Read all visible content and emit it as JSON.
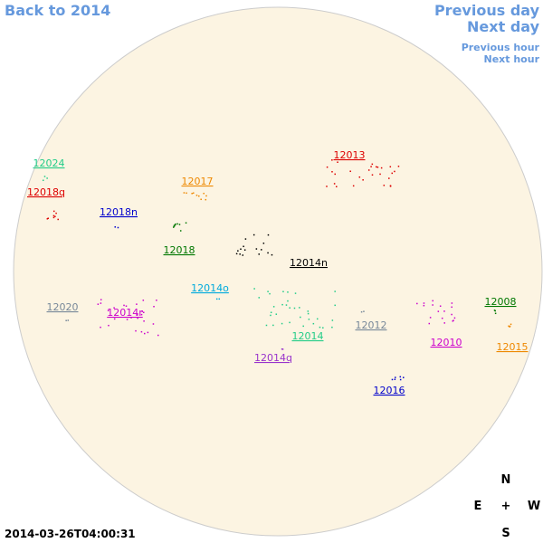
{
  "nav": {
    "back": "Back to 2014",
    "previous_day": "Previous day",
    "next_day": "Next day",
    "previous_hour": "Previous hour",
    "next_hour": "Next hour"
  },
  "timestamp": "2014-03-26T04:00:31",
  "compass": {
    "north": "N",
    "east": "E",
    "center": "+",
    "west": "W",
    "south": "S"
  },
  "regions": [
    {
      "label": "12024",
      "color": "#22cc88"
    },
    {
      "label": "12018q",
      "color": "#dd0000"
    },
    {
      "label": "12018n",
      "color": "#0000cc"
    },
    {
      "label": "12017",
      "color": "#ee8800"
    },
    {
      "label": "12018",
      "color": "#007700"
    },
    {
      "label": "12013",
      "color": "#dd0000"
    },
    {
      "label": "12014n",
      "color": "#000000"
    },
    {
      "label": "12014o",
      "color": "#00aadd"
    },
    {
      "label": "12020",
      "color": "#778899"
    },
    {
      "label": "12014r",
      "color": "#cc00cc"
    },
    {
      "label": "12014",
      "color": "#22cc88"
    },
    {
      "label": "12014q",
      "color": "#9933cc"
    },
    {
      "label": "12012",
      "color": "#778899"
    },
    {
      "label": "12010",
      "color": "#cc00cc"
    },
    {
      "label": "12008",
      "color": "#007700"
    },
    {
      "label": "12015",
      "color": "#ee8800"
    },
    {
      "label": "12016",
      "color": "#0000cc"
    }
  ]
}
